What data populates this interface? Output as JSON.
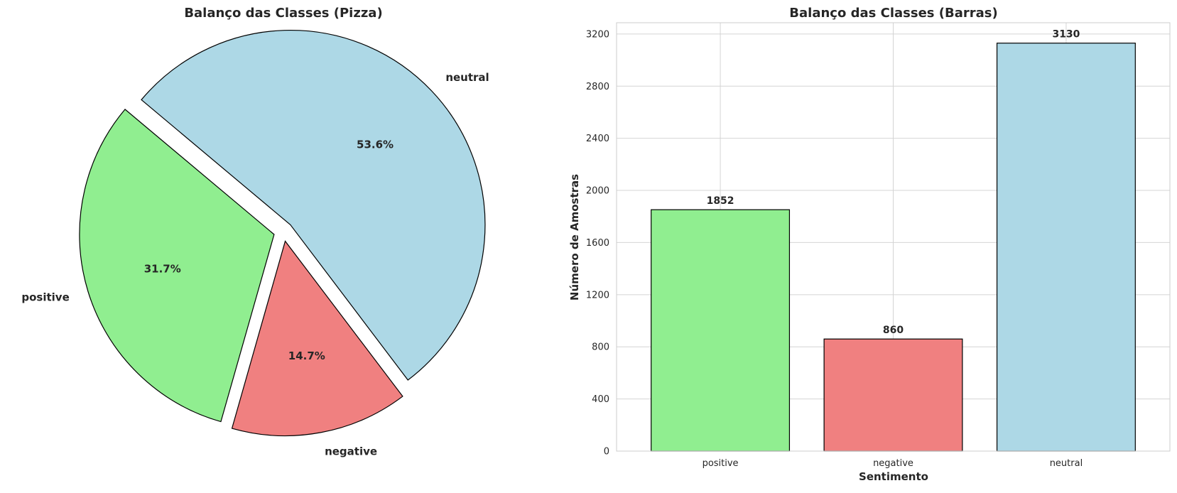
{
  "chart_data": [
    {
      "type": "pie",
      "title": "Balanço das Classes (Pizza)",
      "start_angle_deg": 140,
      "slices": [
        {
          "label": "positive",
          "value": 1852,
          "pct_text": "31.7%",
          "color": "#90EE90",
          "explode": 0.05
        },
        {
          "label": "negative",
          "value": 860,
          "pct_text": "14.7%",
          "color": "#F08080",
          "explode": 0.05
        },
        {
          "label": "neutral",
          "value": 3130,
          "pct_text": "53.6%",
          "color": "#ADD8E6",
          "explode": 0.05
        }
      ]
    },
    {
      "type": "bar",
      "title": "Balanço das Classes (Barras)",
      "xlabel": "Sentimento",
      "ylabel": "Número de Amostras",
      "categories": [
        "positive",
        "negative",
        "neutral"
      ],
      "values": [
        1852,
        860,
        3130
      ],
      "value_labels": [
        "1852",
        "860",
        "3130"
      ],
      "colors": [
        "#90EE90",
        "#F08080",
        "#ADD8E6"
      ],
      "ylim": [
        0,
        3286.5
      ],
      "yticks": [
        0,
        400,
        800,
        1200,
        1600,
        2000,
        2400,
        2800,
        3200
      ],
      "ytick_labels": [
        "0",
        "400",
        "800",
        "1200",
        "1600",
        "2000",
        "2400",
        "2800",
        "3200"
      ],
      "grid": true
    }
  ]
}
